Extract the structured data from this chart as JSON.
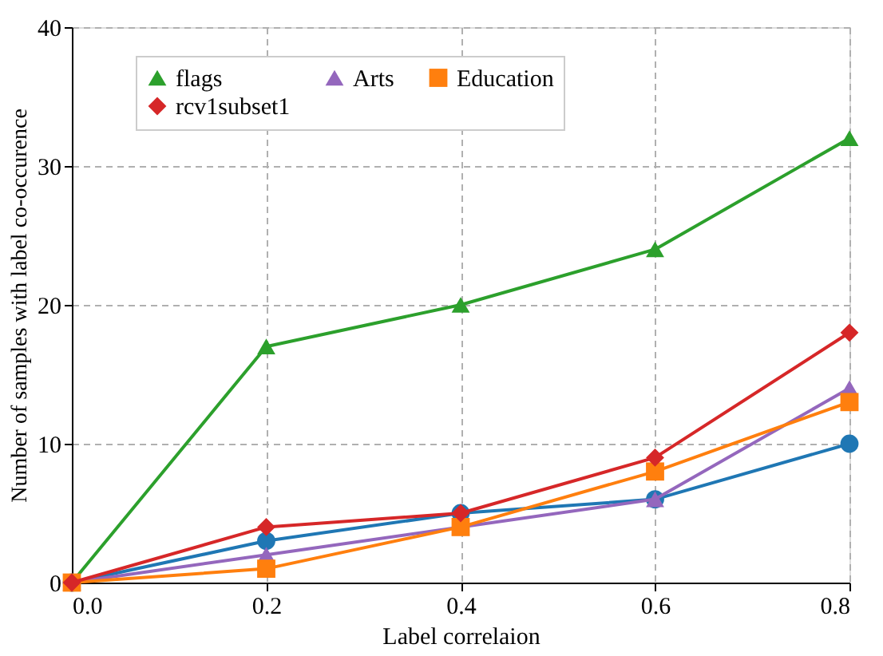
{
  "chart_data": {
    "type": "line",
    "xlabel": "Label correlaion",
    "ylabel": "Number of samples with label co-occurence",
    "x": [
      0,
      0.2,
      0.4,
      0.6,
      0.8
    ],
    "xlim": [
      0,
      0.8
    ],
    "xticks": [
      {
        "value": 0,
        "label": "0.0"
      },
      0.2,
      0.4,
      0.6,
      0.8
    ],
    "ylim": [
      0,
      40
    ],
    "yticks": [
      0,
      10,
      20,
      30,
      40
    ],
    "grid": true,
    "legend": "top",
    "line_style": "solid",
    "series": [
      {
        "color": "#1f77b4",
        "marker": "circle",
        "values": [
          0,
          3,
          5,
          6,
          10
        ]
      },
      {
        "name": "flags",
        "color": "#2ca02c",
        "marker": "triangle",
        "values": [
          0,
          17,
          20,
          24,
          32
        ]
      },
      {
        "name": "Arts",
        "color": "#9467bd",
        "marker": "triangle",
        "values": [
          0,
          2,
          4,
          6,
          14
        ]
      },
      {
        "name": "Education",
        "color": "#ff7f0e",
        "marker": "square",
        "values": [
          0,
          1,
          4,
          8,
          13
        ]
      },
      {
        "name": "rcv1subset1",
        "color": "#d62728",
        "marker": "diamond",
        "values": [
          0,
          4,
          5,
          9,
          18
        ]
      }
    ]
  }
}
